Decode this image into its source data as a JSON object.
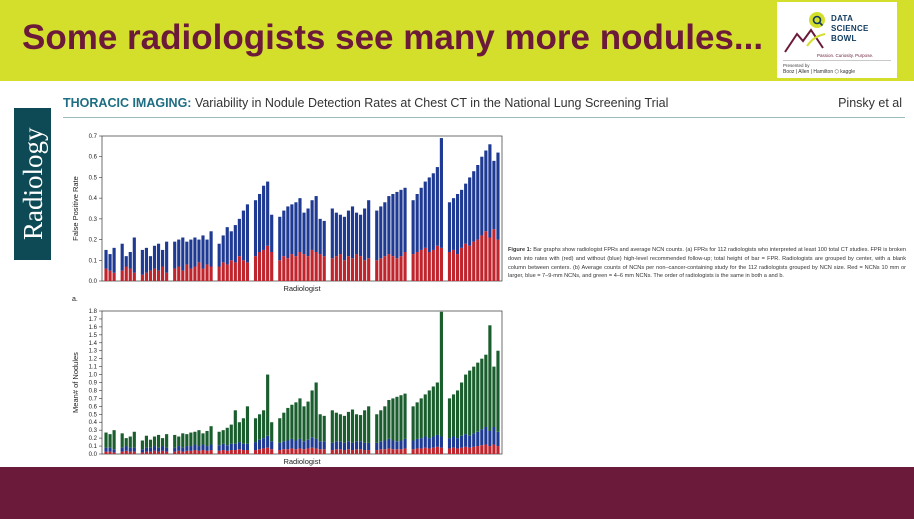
{
  "slide": {
    "title": "Some radiologists see many more nodules...",
    "colors": {
      "title_band": "#d4df2c",
      "title_text": "#6b1a3a",
      "footer_band": "#6b1a3a"
    }
  },
  "logo": {
    "lines": [
      "DATA",
      "SCIENCE",
      "BOWL"
    ],
    "tagline": "Passion. Curiosity. Purpose.",
    "presented_by": "Presented by",
    "partners": "Booz | Allen | Hamilton  ⬡ kaggle"
  },
  "journal": {
    "name": "Radiology"
  },
  "paper": {
    "section": "THORACIC IMAGING:",
    "title": " Variability in Nodule Detection Rates at Chest CT in the National Lung Screening Trial",
    "authors": "Pinsky et al"
  },
  "figure": {
    "caption_label": "Figure 1:",
    "caption_text": "Bar graphs show radiologist FPRs and average NCN counts. (a) FPRs for 112 radiologists who interpreted at least 100 total CT studies. FPR is broken down into rates with (red) and without (blue) high-level recommended follow-up; total height of bar = FPR. Radiologists are grouped by center, with a blank column between centers. (b) Average counts of NCNs per non–cancer-containing study for the 112 radiologists grouped by NCN size. Red = NCNs 10 mm or larger, blue = 7–9-mm NCNs, and green = 4–6 mm NCNs. The order of radiologists is the same in both a and b.",
    "panel_a_label": "a."
  },
  "chart_data": [
    {
      "type": "bar",
      "stacked": true,
      "xlabel": "Radiologist",
      "ylabel": "False Positive Rate",
      "ylim": [
        0,
        0.7
      ],
      "yticks": [
        "0.0",
        "0.1",
        "0.2",
        "0.3",
        "0.4",
        "0.5",
        "0.6",
        "0.7"
      ],
      "grid": false,
      "colors": {
        "red": "#c0242c",
        "blue": "#1f3a93"
      },
      "groups": [
        {
          "red": [
            0.06,
            0.05,
            0.04
          ],
          "total": [
            0.15,
            0.13,
            0.16
          ]
        },
        {
          "red": [
            0.05,
            0.07,
            0.06,
            0.04
          ],
          "total": [
            0.18,
            0.12,
            0.14,
            0.21
          ]
        },
        {
          "red": [
            0.03,
            0.04,
            0.05,
            0.06,
            0.05,
            0.07,
            0.04
          ],
          "total": [
            0.15,
            0.16,
            0.12,
            0.17,
            0.18,
            0.15,
            0.19
          ]
        },
        {
          "red": [
            0.06,
            0.07,
            0.05,
            0.08,
            0.06,
            0.07,
            0.09,
            0.06,
            0.08,
            0.07
          ],
          "total": [
            0.19,
            0.2,
            0.21,
            0.19,
            0.2,
            0.21,
            0.2,
            0.22,
            0.2,
            0.24
          ]
        },
        {
          "red": [
            0.07,
            0.09,
            0.08,
            0.1,
            0.09,
            0.12,
            0.1,
            0.09
          ],
          "total": [
            0.18,
            0.22,
            0.26,
            0.24,
            0.27,
            0.3,
            0.34,
            0.37
          ]
        },
        {
          "red": [
            0.12,
            0.14,
            0.15,
            0.17,
            0.14
          ],
          "total": [
            0.39,
            0.42,
            0.46,
            0.48,
            0.32
          ]
        },
        {
          "red": [
            0.1,
            0.12,
            0.11,
            0.13,
            0.12,
            0.14,
            0.13,
            0.12,
            0.15,
            0.14,
            0.13,
            0.12
          ],
          "total": [
            0.31,
            0.34,
            0.36,
            0.37,
            0.38,
            0.4,
            0.33,
            0.35,
            0.39,
            0.41,
            0.3,
            0.29
          ]
        },
        {
          "red": [
            0.11,
            0.12,
            0.13,
            0.1,
            0.12,
            0.11,
            0.13,
            0.12,
            0.1,
            0.11
          ],
          "total": [
            0.35,
            0.33,
            0.32,
            0.31,
            0.34,
            0.36,
            0.33,
            0.32,
            0.35,
            0.39
          ]
        },
        {
          "red": [
            0.1,
            0.11,
            0.12,
            0.13,
            0.12,
            0.11,
            0.12,
            0.14
          ],
          "total": [
            0.34,
            0.36,
            0.38,
            0.41,
            0.42,
            0.43,
            0.44,
            0.45
          ]
        },
        {
          "red": [
            0.13,
            0.14,
            0.15,
            0.16,
            0.14,
            0.15,
            0.17,
            0.16
          ],
          "total": [
            0.39,
            0.42,
            0.45,
            0.48,
            0.5,
            0.52,
            0.55,
            0.69
          ]
        },
        {
          "red": [
            0.14,
            0.15,
            0.13,
            0.16,
            0.18,
            0.17,
            0.19,
            0.2,
            0.22,
            0.24,
            0.21,
            0.25,
            0.2
          ],
          "total": [
            0.38,
            0.4,
            0.42,
            0.44,
            0.47,
            0.5,
            0.53,
            0.56,
            0.6,
            0.63,
            0.66,
            0.58,
            0.62
          ]
        }
      ]
    },
    {
      "type": "bar",
      "stacked": true,
      "xlabel": "Radiologist",
      "ylabel": "Mean# of Nodules",
      "ylim": [
        0,
        1.8
      ],
      "yticks": [
        "0.0",
        "0.1",
        "0.2",
        "0.3",
        "0.4",
        "0.5",
        "0.6",
        "0.7",
        "0.8",
        "0.9",
        "1.0",
        "1.1",
        "1.2",
        "1.3",
        "1.4",
        "1.5",
        "1.6",
        "1.7",
        "1.8"
      ],
      "grid": false,
      "colors": {
        "red": "#c0242c",
        "blue": "#1f3a93",
        "green": "#1a5e2e"
      },
      "groups": [
        {
          "red": [
            0.03,
            0.03,
            0.02
          ],
          "blue": [
            0.05,
            0.05,
            0.04
          ],
          "total": [
            0.27,
            0.25,
            0.3
          ]
        },
        {
          "red": [
            0.03,
            0.04,
            0.03,
            0.03
          ],
          "blue": [
            0.05,
            0.06,
            0.05,
            0.05
          ],
          "total": [
            0.26,
            0.2,
            0.22,
            0.28
          ]
        },
        {
          "red": [
            0.02,
            0.03,
            0.03,
            0.04,
            0.03,
            0.04,
            0.03
          ],
          "blue": [
            0.04,
            0.05,
            0.05,
            0.06,
            0.05,
            0.06,
            0.05
          ],
          "total": [
            0.17,
            0.23,
            0.18,
            0.22,
            0.24,
            0.2,
            0.25
          ]
        },
        {
          "red": [
            0.03,
            0.04,
            0.03,
            0.04,
            0.04,
            0.05,
            0.04,
            0.05,
            0.04,
            0.05
          ],
          "blue": [
            0.05,
            0.06,
            0.05,
            0.06,
            0.06,
            0.07,
            0.06,
            0.07,
            0.06,
            0.07
          ],
          "total": [
            0.24,
            0.22,
            0.26,
            0.25,
            0.27,
            0.28,
            0.3,
            0.26,
            0.29,
            0.35
          ]
        },
        {
          "red": [
            0.04,
            0.05,
            0.04,
            0.05,
            0.05,
            0.06,
            0.05,
            0.05
          ],
          "blue": [
            0.07,
            0.08,
            0.07,
            0.08,
            0.08,
            0.09,
            0.08,
            0.08
          ],
          "total": [
            0.28,
            0.3,
            0.33,
            0.37,
            0.55,
            0.4,
            0.45,
            0.6
          ]
        },
        {
          "red": [
            0.05,
            0.06,
            0.07,
            0.08,
            0.06
          ],
          "blue": [
            0.1,
            0.12,
            0.13,
            0.15,
            0.1
          ],
          "total": [
            0.45,
            0.5,
            0.55,
            1.0,
            0.4
          ]
        },
        {
          "red": [
            0.05,
            0.06,
            0.06,
            0.07,
            0.06,
            0.07,
            0.06,
            0.07,
            0.08,
            0.07,
            0.06,
            0.06
          ],
          "blue": [
            0.09,
            0.1,
            0.11,
            0.12,
            0.11,
            0.12,
            0.1,
            0.11,
            0.13,
            0.12,
            0.1,
            0.1
          ],
          "total": [
            0.45,
            0.52,
            0.58,
            0.62,
            0.65,
            0.7,
            0.6,
            0.66,
            0.8,
            0.9,
            0.5,
            0.48
          ]
        },
        {
          "red": [
            0.05,
            0.06,
            0.06,
            0.05,
            0.06,
            0.05,
            0.06,
            0.06,
            0.05,
            0.05
          ],
          "blue": [
            0.09,
            0.1,
            0.1,
            0.09,
            0.1,
            0.09,
            0.1,
            0.1,
            0.09,
            0.09
          ],
          "total": [
            0.55,
            0.52,
            0.5,
            0.48,
            0.53,
            0.56,
            0.5,
            0.49,
            0.55,
            0.6
          ]
        },
        {
          "red": [
            0.05,
            0.06,
            0.06,
            0.07,
            0.06,
            0.06,
            0.06,
            0.07
          ],
          "blue": [
            0.09,
            0.1,
            0.11,
            0.12,
            0.11,
            0.1,
            0.11,
            0.12
          ],
          "total": [
            0.5,
            0.55,
            0.6,
            0.68,
            0.7,
            0.72,
            0.74,
            0.76
          ]
        },
        {
          "red": [
            0.06,
            0.07,
            0.07,
            0.08,
            0.07,
            0.08,
            0.09,
            0.08
          ],
          "blue": [
            0.11,
            0.12,
            0.13,
            0.14,
            0.13,
            0.14,
            0.15,
            0.14
          ],
          "total": [
            0.6,
            0.65,
            0.7,
            0.75,
            0.8,
            0.85,
            0.9,
            1.79
          ]
        },
        {
          "red": [
            0.07,
            0.08,
            0.07,
            0.08,
            0.09,
            0.08,
            0.09,
            0.1,
            0.11,
            0.12,
            0.1,
            0.12,
            0.1
          ],
          "blue": [
            0.13,
            0.14,
            0.13,
            0.15,
            0.16,
            0.15,
            0.17,
            0.18,
            0.2,
            0.22,
            0.19,
            0.22,
            0.18
          ],
          "total": [
            0.7,
            0.75,
            0.8,
            0.9,
            1.0,
            1.05,
            1.1,
            1.15,
            1.2,
            1.25,
            1.62,
            1.1,
            1.3
          ]
        }
      ]
    }
  ]
}
